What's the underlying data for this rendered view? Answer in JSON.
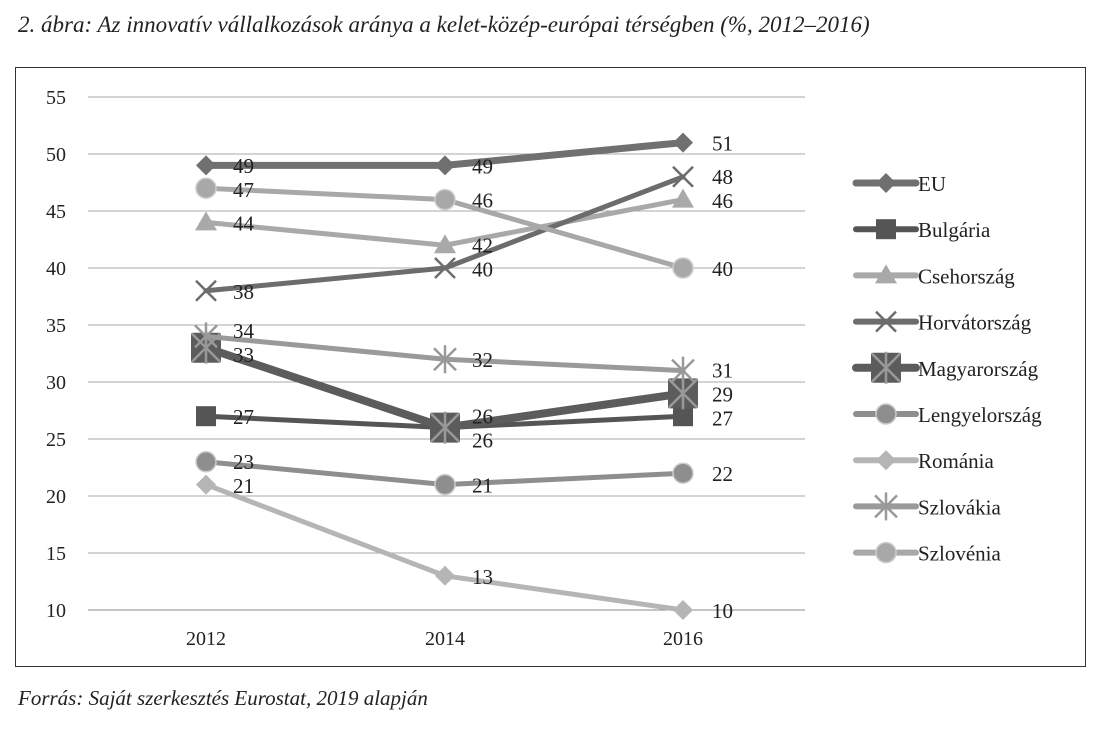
{
  "title": "2. ábra: Az innovatív vállalkozások aránya a kelet-közép-európai térségben (%, 2012–2016)",
  "source": "Forrás: Saját szerkesztés Eurostat, 2019 alapján",
  "chart_data": {
    "type": "line",
    "title": "",
    "xlabel": "",
    "ylabel": "",
    "categories": [
      "2012",
      "2014",
      "2016"
    ],
    "ylim": [
      10,
      55
    ],
    "yticks": [
      10,
      15,
      20,
      25,
      30,
      35,
      40,
      45,
      50,
      55
    ],
    "grid": true,
    "legend_position": "right",
    "data_labels": true,
    "series": [
      {
        "name": "EU",
        "values": [
          49,
          49,
          51
        ],
        "color": "#707070",
        "marker": "diamond"
      },
      {
        "name": "Bulgária",
        "values": [
          27,
          26,
          27
        ],
        "color": "#555555",
        "marker": "square"
      },
      {
        "name": "Csehország",
        "values": [
          44,
          42,
          46
        ],
        "color": "#a9a9a9",
        "marker": "triangle"
      },
      {
        "name": "Horvátország",
        "values": [
          38,
          40,
          48
        ],
        "color": "#6c6c6c",
        "marker": "x"
      },
      {
        "name": "Magyarország",
        "values": [
          33,
          26,
          29
        ],
        "color": "#5c5c5c",
        "marker": "square-star"
      },
      {
        "name": "Lengyelország",
        "values": [
          23,
          21,
          22
        ],
        "color": "#8e8e8e",
        "marker": "circle"
      },
      {
        "name": "Románia",
        "values": [
          21,
          13,
          10
        ],
        "color": "#b5b5b5",
        "marker": "diamond"
      },
      {
        "name": "Szlovákia",
        "values": [
          34,
          32,
          31
        ],
        "color": "#9a9a9a",
        "marker": "star"
      },
      {
        "name": "Szlovénia",
        "values": [
          47,
          46,
          40
        ],
        "color": "#a8a8a8",
        "marker": "circle"
      }
    ]
  }
}
